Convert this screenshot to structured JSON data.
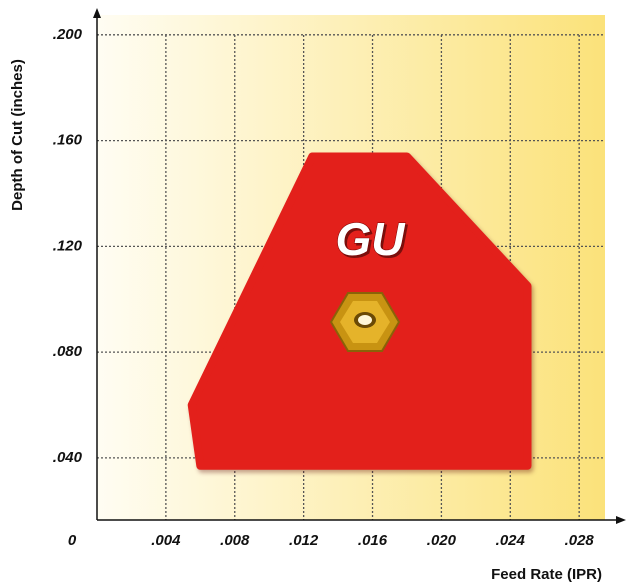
{
  "chart_data": {
    "type": "area",
    "annotation": "GU",
    "x_label": "Feed Rate (IPR)",
    "y_label": "Depth of Cut (inches)",
    "x": [
      0.0055,
      0.0125,
      0.018,
      0.025,
      0.025,
      0.006
    ],
    "values": [
      0.06,
      0.154,
      0.154,
      0.105,
      0.037,
      0.037
    ],
    "color": "#e3201b",
    "xlim": [
      0,
      0.0295
    ],
    "ylim": [
      0.0165,
      0.2075
    ],
    "xticks": [
      0,
      {
        "value": 0.004,
        "label": ".004"
      },
      {
        "value": 0.008,
        "label": ".008"
      },
      {
        "value": 0.012,
        "label": ".012"
      },
      {
        "value": 0.016,
        "label": ".016"
      },
      {
        "value": 0.02,
        "label": ".020"
      },
      {
        "value": 0.024,
        "label": ".024"
      },
      {
        "value": 0.028,
        "label": ".028"
      }
    ],
    "yticks": [
      {
        "value": 0.04,
        "label": ".040"
      },
      {
        "value": 0.08,
        "label": ".080"
      },
      {
        "value": 0.12,
        "label": ".120"
      },
      {
        "value": 0.16,
        "label": ".160"
      },
      {
        "value": 0.2,
        "label": ".200"
      }
    ],
    "grid": true
  }
}
